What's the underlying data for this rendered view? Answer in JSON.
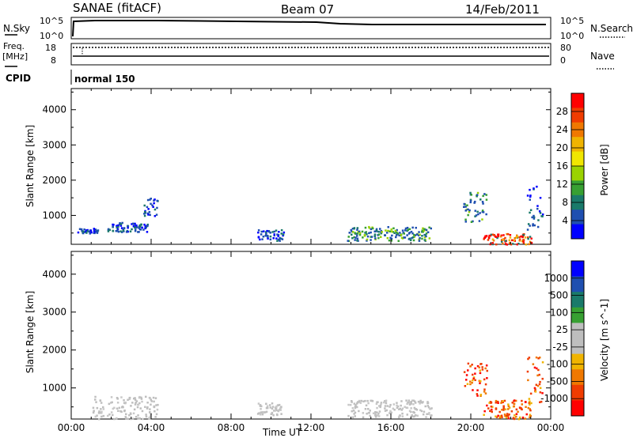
{
  "header": {
    "station": "SANAE (fitACF)",
    "beam": "Beam 07",
    "date": "14/Feb/2011"
  },
  "top_panel": {
    "left_label": "N.Sky",
    "left_ticks": [
      "10^5",
      "10^0"
    ],
    "right_label": "N.Search",
    "right_ticks": [
      "10^5",
      "10^0"
    ]
  },
  "freq_panel": {
    "left_label_1": "Freq.",
    "left_label_2": "[MHz]",
    "left_ticks": [
      "18",
      "8"
    ],
    "right_label": "Nave",
    "right_ticks": [
      "80",
      "0"
    ]
  },
  "cpid": {
    "label": "CPID",
    "value": "normal 150"
  },
  "chart_data": [
    {
      "type": "heatmap",
      "panel": "power",
      "ylabel": "Slant Range [km]",
      "xlabel": "",
      "x_ticks": [
        "00:00",
        "04:00",
        "08:00",
        "12:00",
        "16:00",
        "20:00",
        "00:00"
      ],
      "y_ticks": [
        "1000",
        "2000",
        "3000",
        "4000"
      ],
      "ylim": [
        180,
        4600
      ],
      "xlim": [
        0,
        24
      ],
      "colorbar": {
        "label": "Power [dB]",
        "ticks": [
          "28",
          "24",
          "20",
          "16",
          "12",
          "8",
          "4"
        ],
        "colors": [
          "#ff0000",
          "#f03c00",
          "#f07800",
          "#f0b400",
          "#f0e600",
          "#9ad200",
          "#37a032",
          "#1a7a6a",
          "#1f4fb0",
          "#0000ff"
        ]
      },
      "regions": [
        {
          "t_start": 0.3,
          "t_end": 1.3,
          "r_start": 500,
          "r_end": 650,
          "level": "low"
        },
        {
          "t_start": 1.8,
          "t_end": 3.8,
          "r_start": 550,
          "r_end": 820,
          "level": "low"
        },
        {
          "t_start": 3.6,
          "t_end": 4.3,
          "r_start": 1000,
          "r_end": 1550,
          "level": "low"
        },
        {
          "t_start": 9.3,
          "t_end": 10.6,
          "r_start": 300,
          "r_end": 620,
          "level": "low"
        },
        {
          "t_start": 13.8,
          "t_end": 18.0,
          "r_start": 300,
          "r_end": 700,
          "level": "mid"
        },
        {
          "t_start": 19.6,
          "t_end": 20.8,
          "r_start": 800,
          "r_end": 1700,
          "level": "mid"
        },
        {
          "t_start": 20.6,
          "t_end": 23.0,
          "r_start": 200,
          "r_end": 500,
          "level": "high"
        },
        {
          "t_start": 22.8,
          "t_end": 23.6,
          "r_start": 600,
          "r_end": 1900,
          "level": "low"
        }
      ]
    },
    {
      "type": "heatmap",
      "panel": "velocity",
      "ylabel": "Slant Range [km]",
      "xlabel": "Time UT",
      "x_ticks": [
        "00:00",
        "04:00",
        "08:00",
        "12:00",
        "16:00",
        "20:00",
        "00:00"
      ],
      "y_ticks": [
        "1000",
        "2000",
        "3000",
        "4000"
      ],
      "ylim": [
        180,
        4600
      ],
      "xlim": [
        0,
        24
      ],
      "colorbar": {
        "label": "Velocity [m s^-1]",
        "ticks": [
          "1000",
          "500",
          "100",
          "25",
          "-25",
          "-100",
          "-500",
          "-1000"
        ],
        "colors": [
          "#0000ff",
          "#1f4fb0",
          "#1a7a6a",
          "#37a032",
          "#bebebe",
          "#bebebe",
          "#f0b400",
          "#f07800",
          "#f03c00",
          "#ff0000"
        ]
      },
      "regions": [
        {
          "t_start": 1.0,
          "t_end": 4.3,
          "r_start": 200,
          "r_end": 800,
          "level": "ground"
        },
        {
          "t_start": 9.3,
          "t_end": 10.6,
          "r_start": 300,
          "r_end": 620,
          "level": "ground"
        },
        {
          "t_start": 13.8,
          "t_end": 18.0,
          "r_start": 250,
          "r_end": 700,
          "level": "ground"
        },
        {
          "t_start": 19.6,
          "t_end": 20.8,
          "r_start": 800,
          "r_end": 1700,
          "level": "negative"
        },
        {
          "t_start": 20.6,
          "t_end": 23.0,
          "r_start": 200,
          "r_end": 700,
          "level": "negative"
        },
        {
          "t_start": 22.8,
          "t_end": 23.6,
          "r_start": 600,
          "r_end": 1900,
          "level": "negative"
        }
      ]
    }
  ]
}
